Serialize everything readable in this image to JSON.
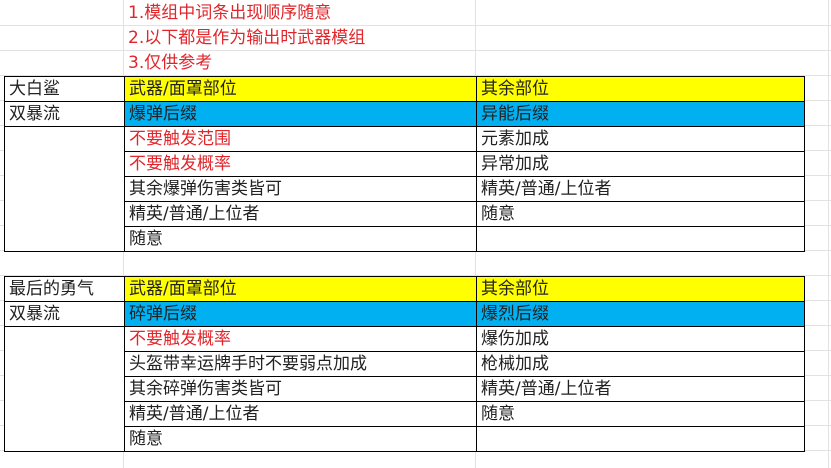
{
  "notes": [
    "1.模组中词条出现顺序随意",
    "2.以下都是作为输出时武器模组",
    "3.仅供参考"
  ],
  "colors": {
    "header": "#ffff00",
    "suffix": "#00b0f0",
    "warning_text": "#e0262b"
  },
  "tables": [
    {
      "name": "大白鲨",
      "build": "双暴流",
      "header": [
        "武器/面罩部位",
        "其余部位"
      ],
      "suffix": [
        "爆弹后缀",
        "异能后缀"
      ],
      "rows": [
        {
          "weapon": "不要触发范围",
          "weapon_red": true,
          "other": "元素加成"
        },
        {
          "weapon": "不要触发概率",
          "weapon_red": true,
          "other": "异常加成"
        },
        {
          "weapon": "其余爆弹伤害类皆可",
          "weapon_red": false,
          "other": "精英/普通/上位者"
        },
        {
          "weapon": "精英/普通/上位者",
          "weapon_red": false,
          "other": "随意"
        },
        {
          "weapon": "随意",
          "weapon_red": false,
          "other": ""
        }
      ]
    },
    {
      "name": "最后的勇气",
      "build": "双暴流",
      "header": [
        "武器/面罩部位",
        "其余部位"
      ],
      "suffix": [
        "碎弹后缀",
        "爆烈后缀"
      ],
      "rows": [
        {
          "weapon": "不要触发概率",
          "weapon_red": true,
          "other": "爆伤加成"
        },
        {
          "weapon": "头盔带幸运牌手时不要弱点加成",
          "weapon_red": false,
          "other": "枪械加成"
        },
        {
          "weapon": "其余碎弹伤害类皆可",
          "weapon_red": false,
          "other": "精英/普通/上位者"
        },
        {
          "weapon": "精英/普通/上位者",
          "weapon_red": false,
          "other": "随意"
        },
        {
          "weapon": "随意",
          "weapon_red": false,
          "other": ""
        }
      ]
    }
  ]
}
